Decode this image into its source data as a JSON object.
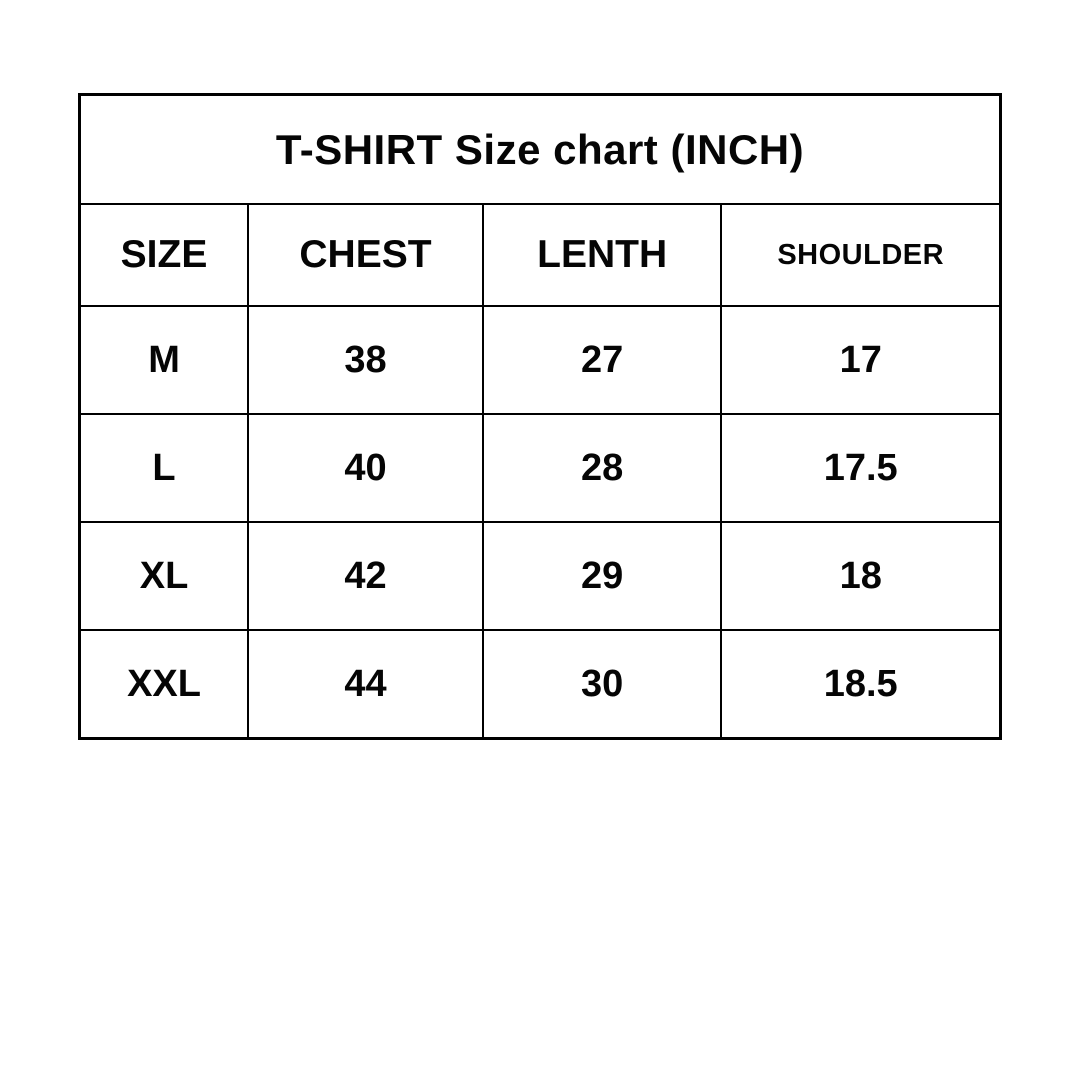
{
  "chart_data": {
    "type": "table",
    "title": "T-SHIRT Size chart (INCH)",
    "unit": "INCH",
    "columns": [
      "SIZE",
      "CHEST",
      "LENTH",
      "SHOULDER"
    ],
    "rows": [
      [
        "M",
        "38",
        "27",
        "17"
      ],
      [
        "L",
        "40",
        "28",
        "17.5"
      ],
      [
        "XL",
        "42",
        "29",
        "18"
      ],
      [
        "XXL",
        "44",
        "30",
        "18.5"
      ]
    ],
    "layout": {
      "background": "#ffffff",
      "border_color": "#000000",
      "text_color": "#050505",
      "grid": "on"
    }
  }
}
